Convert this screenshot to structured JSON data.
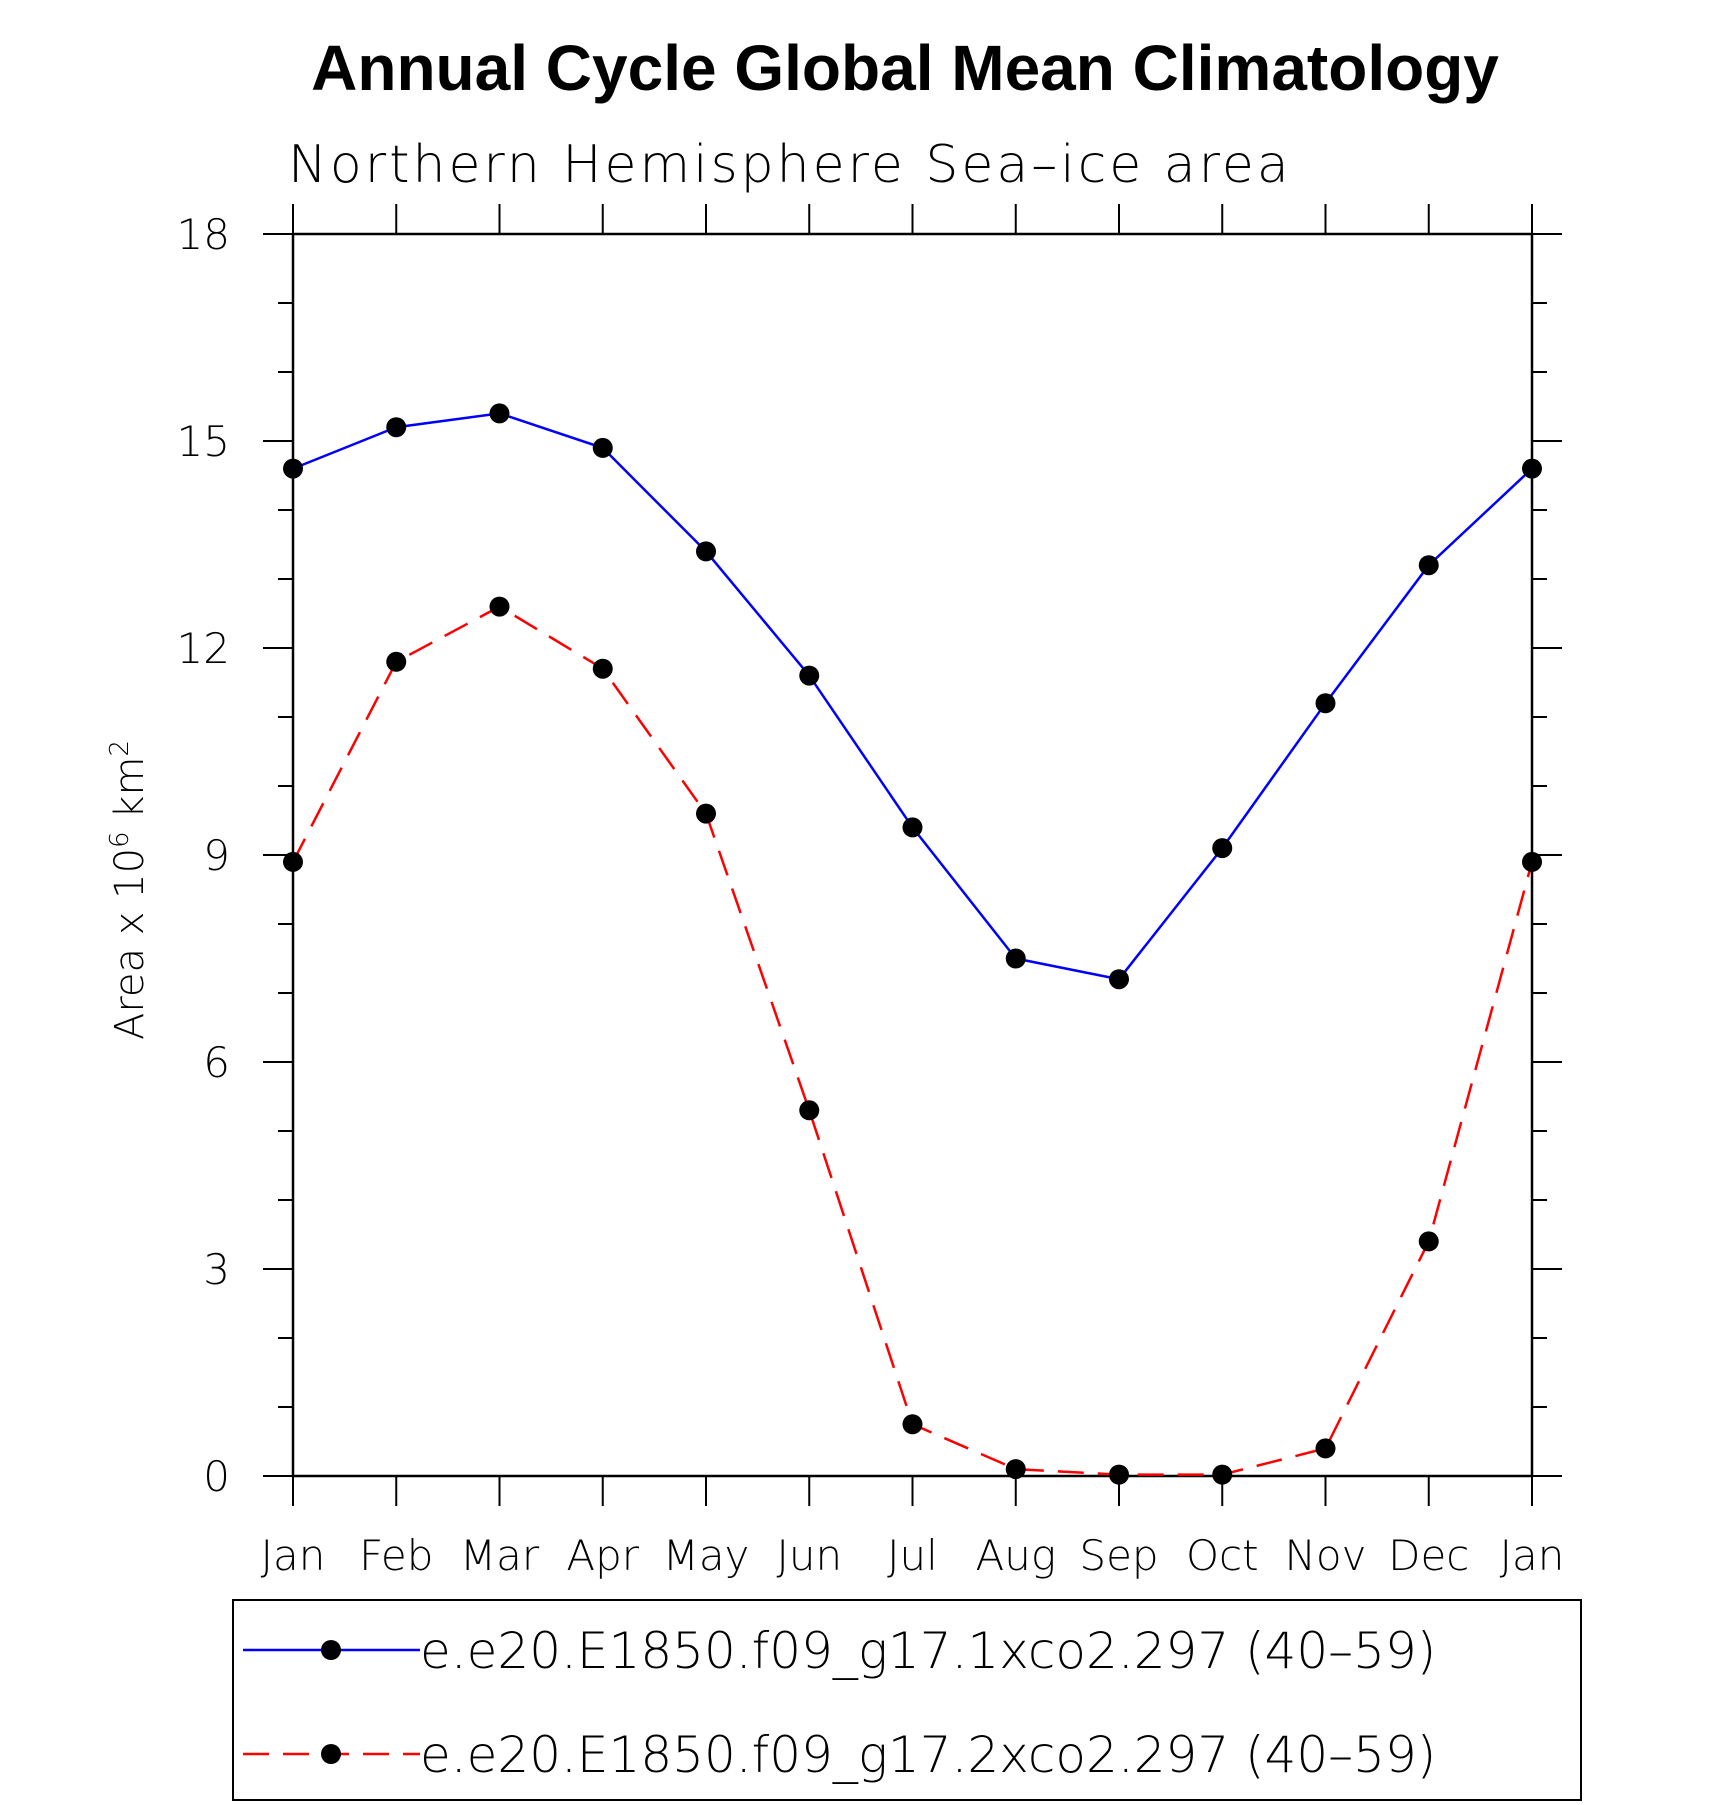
{
  "chart_data": {
    "type": "line",
    "title": "Annual Cycle Global Mean Climatology",
    "subtitle": "Northern Hemisphere Sea–ice area",
    "ylabel": "Area x 10",
    "ylabel_exponent": "6",
    "ylabel_unit": "km",
    "ylabel_unit_exponent": "2",
    "xlabel": "",
    "categories": [
      "Jan",
      "Feb",
      "Mar",
      "Apr",
      "May",
      "Jun",
      "Jul",
      "Aug",
      "Sep",
      "Oct",
      "Nov",
      "Dec",
      "Jan"
    ],
    "ylim": [
      0,
      18
    ],
    "yticks": [
      0,
      3,
      6,
      9,
      12,
      15,
      18
    ],
    "grid": false,
    "legend_position": "bottom",
    "series": [
      {
        "name": "e.e20.E1850.f09_g17.1xco2.297 (40–59)",
        "color": "#0000ff",
        "dashed": false,
        "values": [
          14.6,
          15.2,
          15.4,
          14.9,
          13.4,
          11.6,
          9.4,
          7.5,
          7.2,
          9.1,
          11.2,
          13.2,
          14.6
        ]
      },
      {
        "name": "e.e20.E1850.f09_g17.2xco2.297 (40–59)",
        "color": "#ff0000",
        "dashed": true,
        "values": [
          8.9,
          11.8,
          12.6,
          11.7,
          9.6,
          5.3,
          0.75,
          0.1,
          0.02,
          0.02,
          0.4,
          3.4,
          8.9
        ]
      }
    ]
  }
}
